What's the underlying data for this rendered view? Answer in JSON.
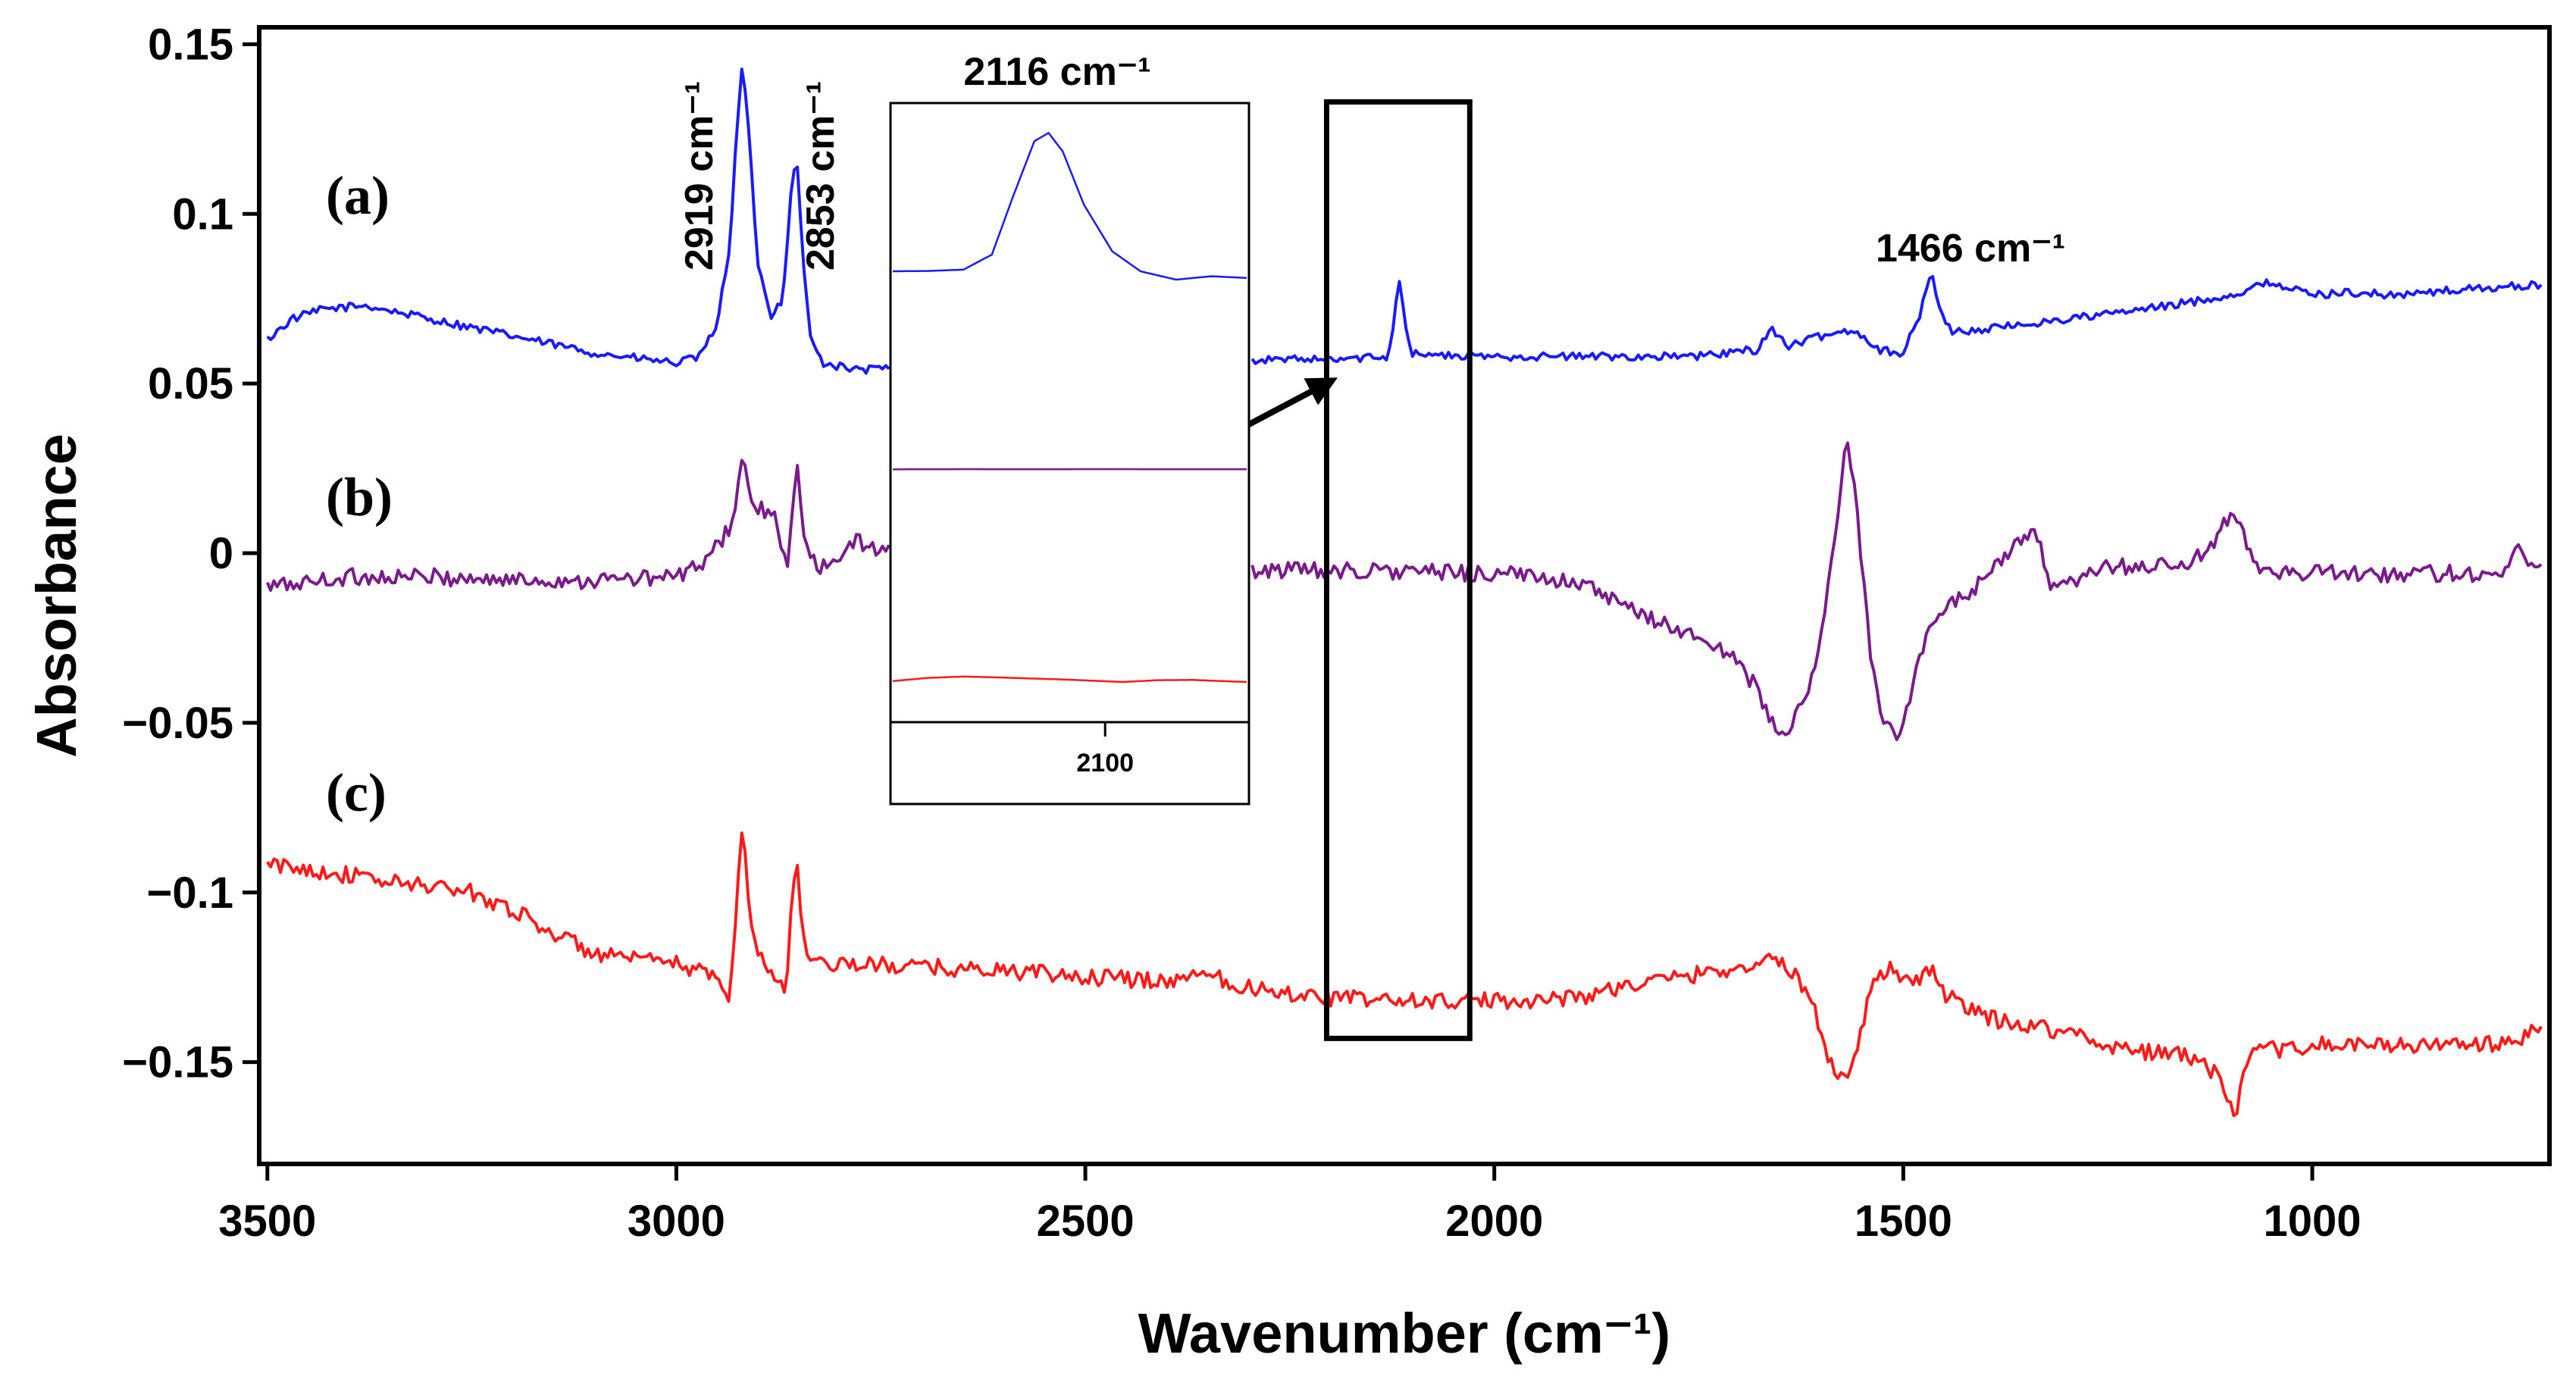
{
  "chart_data": {
    "type": "line",
    "title": "",
    "xlabel": "Wavenumber (cm⁻¹)",
    "ylabel": "Absorbance",
    "xlim": [
      3510,
      710
    ],
    "ylim": [
      -0.18,
      0.155
    ],
    "xticks": [
      3500,
      3000,
      2500,
      2000,
      1500,
      1000
    ],
    "xtick_labels": [
      "3500",
      "3000",
      "2500",
      "2000",
      "1500",
      "1000"
    ],
    "yticks": [
      0.15,
      0.1,
      0.05,
      0,
      -0.05,
      -0.1,
      -0.15
    ],
    "ytick_labels": [
      "0.15",
      "0.1",
      "0.05",
      "0",
      "−0.05",
      "−0.1",
      "−0.15"
    ],
    "grid": false,
    "series": [
      {
        "name": "(a)",
        "color": "#1a1aff",
        "noise": 0.0012,
        "points": [
          [
            3500,
            0.063
          ],
          [
            3470,
            0.069
          ],
          [
            3430,
            0.072
          ],
          [
            3380,
            0.073
          ],
          [
            3300,
            0.069
          ],
          [
            3200,
            0.064
          ],
          [
            3100,
            0.059
          ],
          [
            3000,
            0.056
          ],
          [
            2970,
            0.058
          ],
          [
            2950,
            0.068
          ],
          [
            2935,
            0.09
          ],
          [
            2925,
            0.128
          ],
          [
            2919,
            0.145
          ],
          [
            2912,
            0.125
          ],
          [
            2900,
            0.085
          ],
          [
            2885,
            0.07
          ],
          [
            2870,
            0.075
          ],
          [
            2860,
            0.105
          ],
          [
            2853,
            0.119
          ],
          [
            2845,
            0.085
          ],
          [
            2835,
            0.062
          ],
          [
            2820,
            0.056
          ],
          [
            2780,
            0.054
          ],
          [
            2700,
            0.055
          ],
          [
            2600,
            0.056
          ],
          [
            2500,
            0.056
          ],
          [
            2400,
            0.057
          ],
          [
            2300,
            0.057
          ],
          [
            2200,
            0.057
          ],
          [
            2130,
            0.058
          ],
          [
            2122,
            0.07
          ],
          [
            2116,
            0.081
          ],
          [
            2110,
            0.07
          ],
          [
            2102,
            0.059
          ],
          [
            2050,
            0.058
          ],
          [
            1900,
            0.058
          ],
          [
            1750,
            0.058
          ],
          [
            1680,
            0.06
          ],
          [
            1660,
            0.066
          ],
          [
            1640,
            0.061
          ],
          [
            1600,
            0.064
          ],
          [
            1560,
            0.066
          ],
          [
            1530,
            0.06
          ],
          [
            1500,
            0.059
          ],
          [
            1480,
            0.07
          ],
          [
            1466,
            0.083
          ],
          [
            1455,
            0.072
          ],
          [
            1440,
            0.065
          ],
          [
            1400,
            0.066
          ],
          [
            1300,
            0.069
          ],
          [
            1200,
            0.072
          ],
          [
            1100,
            0.076
          ],
          [
            1050,
            0.08
          ],
          [
            1000,
            0.076
          ],
          [
            960,
            0.077
          ],
          [
            900,
            0.076
          ],
          [
            800,
            0.078
          ],
          [
            720,
            0.079
          ]
        ]
      },
      {
        "name": "(b)",
        "color": "#7b1a8c",
        "noise": 0.0025,
        "points": [
          [
            3500,
            -0.01
          ],
          [
            3400,
            -0.007
          ],
          [
            3300,
            -0.007
          ],
          [
            3200,
            -0.008
          ],
          [
            3100,
            -0.008
          ],
          [
            3000,
            -0.007
          ],
          [
            2960,
            -0.002
          ],
          [
            2930,
            0.01
          ],
          [
            2919,
            0.03
          ],
          [
            2910,
            0.015
          ],
          [
            2880,
            0.01
          ],
          [
            2865,
            -0.005
          ],
          [
            2853,
            0.027
          ],
          [
            2845,
            0.005
          ],
          [
            2830,
            -0.004
          ],
          [
            2800,
            -0.003
          ],
          [
            2780,
            0.004
          ],
          [
            2760,
            0.002
          ],
          [
            2700,
            -0.004
          ],
          [
            2600,
            -0.005
          ],
          [
            2400,
            -0.005
          ],
          [
            2200,
            -0.005
          ],
          [
            2000,
            -0.006
          ],
          [
            1900,
            -0.008
          ],
          [
            1850,
            -0.015
          ],
          [
            1800,
            -0.02
          ],
          [
            1750,
            -0.025
          ],
          [
            1700,
            -0.032
          ],
          [
            1675,
            -0.042
          ],
          [
            1660,
            -0.05
          ],
          [
            1645,
            -0.055
          ],
          [
            1630,
            -0.048
          ],
          [
            1610,
            -0.035
          ],
          [
            1595,
            -0.015
          ],
          [
            1580,
            0.01
          ],
          [
            1570,
            0.032
          ],
          [
            1562,
            0.025
          ],
          [
            1550,
            -0.005
          ],
          [
            1540,
            -0.03
          ],
          [
            1525,
            -0.048
          ],
          [
            1510,
            -0.055
          ],
          [
            1495,
            -0.045
          ],
          [
            1480,
            -0.03
          ],
          [
            1460,
            -0.02
          ],
          [
            1440,
            -0.015
          ],
          [
            1400,
            -0.008
          ],
          [
            1370,
            0.0
          ],
          [
            1340,
            0.008
          ],
          [
            1320,
            -0.01
          ],
          [
            1300,
            -0.01
          ],
          [
            1250,
            -0.004
          ],
          [
            1200,
            -0.004
          ],
          [
            1150,
            -0.003
          ],
          [
            1120,
            0.002
          ],
          [
            1100,
            0.012
          ],
          [
            1085,
            0.005
          ],
          [
            1060,
            -0.005
          ],
          [
            1000,
            -0.006
          ],
          [
            900,
            -0.006
          ],
          [
            800,
            -0.006
          ],
          [
            760,
            -0.005
          ],
          [
            745,
            0.003
          ],
          [
            735,
            -0.002
          ],
          [
            720,
            -0.004
          ]
        ]
      },
      {
        "name": "(c)",
        "color": "#ff1a1a",
        "noise": 0.0025,
        "points": [
          [
            3500,
            -0.092
          ],
          [
            3450,
            -0.093
          ],
          [
            3400,
            -0.095
          ],
          [
            3350,
            -0.097
          ],
          [
            3300,
            -0.098
          ],
          [
            3250,
            -0.1
          ],
          [
            3200,
            -0.105
          ],
          [
            3150,
            -0.112
          ],
          [
            3100,
            -0.118
          ],
          [
            3050,
            -0.12
          ],
          [
            3000,
            -0.121
          ],
          [
            2960,
            -0.124
          ],
          [
            2935,
            -0.13
          ],
          [
            2925,
            -0.1
          ],
          [
            2919,
            -0.076
          ],
          [
            2910,
            -0.11
          ],
          [
            2895,
            -0.12
          ],
          [
            2880,
            -0.125
          ],
          [
            2865,
            -0.128
          ],
          [
            2858,
            -0.1
          ],
          [
            2853,
            -0.088
          ],
          [
            2845,
            -0.115
          ],
          [
            2830,
            -0.12
          ],
          [
            2800,
            -0.121
          ],
          [
            2700,
            -0.122
          ],
          [
            2600,
            -0.123
          ],
          [
            2500,
            -0.125
          ],
          [
            2400,
            -0.126
          ],
          [
            2370,
            -0.125
          ],
          [
            2360,
            -0.122
          ],
          [
            2340,
            -0.125
          ],
          [
            2300,
            -0.128
          ],
          [
            2200,
            -0.131
          ],
          [
            2100,
            -0.132
          ],
          [
            2000,
            -0.132
          ],
          [
            1900,
            -0.131
          ],
          [
            1850,
            -0.128
          ],
          [
            1800,
            -0.126
          ],
          [
            1750,
            -0.124
          ],
          [
            1700,
            -0.122
          ],
          [
            1660,
            -0.12
          ],
          [
            1640,
            -0.122
          ],
          [
            1610,
            -0.133
          ],
          [
            1590,
            -0.15
          ],
          [
            1570,
            -0.155
          ],
          [
            1555,
            -0.145
          ],
          [
            1540,
            -0.128
          ],
          [
            1520,
            -0.122
          ],
          [
            1500,
            -0.125
          ],
          [
            1480,
            -0.127
          ],
          [
            1465,
            -0.122
          ],
          [
            1450,
            -0.13
          ],
          [
            1420,
            -0.134
          ],
          [
            1400,
            -0.137
          ],
          [
            1350,
            -0.139
          ],
          [
            1300,
            -0.141
          ],
          [
            1250,
            -0.145
          ],
          [
            1200,
            -0.147
          ],
          [
            1150,
            -0.148
          ],
          [
            1120,
            -0.153
          ],
          [
            1105,
            -0.16
          ],
          [
            1095,
            -0.168
          ],
          [
            1085,
            -0.155
          ],
          [
            1070,
            -0.147
          ],
          [
            1000,
            -0.145
          ],
          [
            900,
            -0.145
          ],
          [
            800,
            -0.145
          ],
          [
            750,
            -0.144
          ],
          [
            720,
            -0.14
          ]
        ]
      }
    ],
    "annotations": [
      {
        "text": "2919 cm⁻¹",
        "x": 2919,
        "orientation": "vertical"
      },
      {
        "text": "2853 cm⁻¹",
        "x": 2853,
        "orientation": "vertical"
      },
      {
        "text": "1466 cm⁻¹",
        "x": 1466,
        "y": 0.091
      },
      {
        "text": "2116 cm⁻¹",
        "where": "inset top"
      }
    ],
    "panel_labels": [
      {
        "text": "(a)",
        "series": "(a)"
      },
      {
        "text": "(b)",
        "series": "(b)"
      },
      {
        "text": "(c)",
        "series": "(c)"
      }
    ],
    "highlight_box": {
      "x_from": 2205,
      "x_to": 2030,
      "y_from": -0.143,
      "y_to": 0.133
    },
    "inset": {
      "xlim": [
        2160,
        2060
      ],
      "xticks": [
        2100
      ],
      "xtick_labels": [
        "2100"
      ],
      "title": "2116 cm⁻¹",
      "series": [
        {
          "name": "(a) zoom",
          "color": "#1a1aff",
          "points": [
            [
              2160,
              0.1
            ],
            [
              2150,
              0.102
            ],
            [
              2140,
              0.11
            ],
            [
              2132,
              0.2
            ],
            [
              2126,
              0.55
            ],
            [
              2120,
              0.88
            ],
            [
              2116,
              0.93
            ],
            [
              2112,
              0.82
            ],
            [
              2106,
              0.5
            ],
            [
              2098,
              0.22
            ],
            [
              2090,
              0.1
            ],
            [
              2080,
              0.05
            ],
            [
              2070,
              0.07
            ],
            [
              2060,
              0.06
            ]
          ]
        },
        {
          "name": "(b) zoom",
          "color": "#7b1a8c",
          "points": [
            [
              2160,
              0.01
            ],
            [
              2140,
              0.015
            ],
            [
              2120,
              0.012
            ],
            [
              2100,
              0.016
            ],
            [
              2080,
              0.012
            ],
            [
              2060,
              0.014
            ]
          ]
        },
        {
          "name": "(c) zoom",
          "color": "#ff1a1a",
          "points": [
            [
              2160,
              0.02
            ],
            [
              2150,
              0.09
            ],
            [
              2140,
              0.12
            ],
            [
              2130,
              0.1
            ],
            [
              2120,
              0.075
            ],
            [
              2110,
              0.05
            ],
            [
              2095,
              0.0
            ],
            [
              2085,
              0.04
            ],
            [
              2075,
              0.045
            ],
            [
              2060,
              0.0
            ]
          ]
        }
      ]
    }
  }
}
